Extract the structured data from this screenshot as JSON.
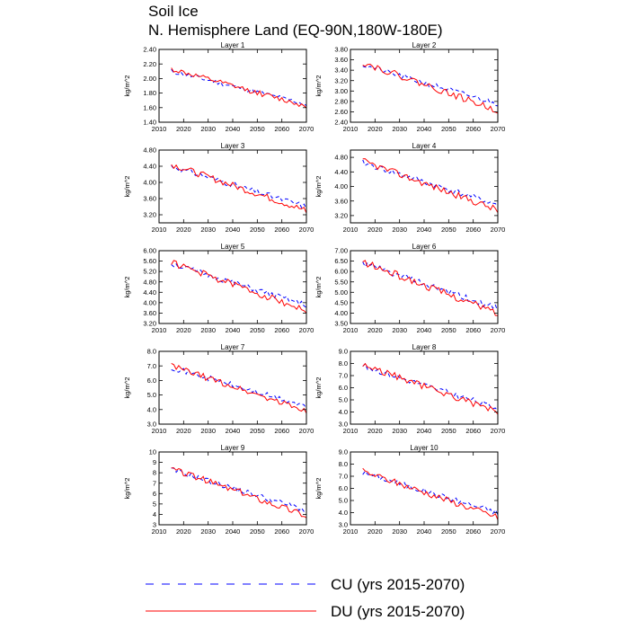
{
  "title_line1": "Soil Ice",
  "title_line2": "N. Hemisphere Land (EQ-90N,180W-180E)",
  "legend": [
    {
      "label": "CU (yrs 2015-2070)",
      "color": "#0000ff",
      "dash": true
    },
    {
      "label": "DU (yrs 2015-2070)",
      "color": "#ff0000",
      "dash": false
    }
  ],
  "chart_data": [
    {
      "type": "line",
      "title": "Layer 1",
      "ylabel": "kg/m^2",
      "xlim": [
        2010,
        2070
      ],
      "ylim": [
        1.4,
        2.4
      ],
      "yticks": [
        "1.40",
        "1.60",
        "1.80",
        "2.00",
        "2.20",
        "2.40"
      ],
      "xticks": [
        "2010",
        "2020",
        "2030",
        "2040",
        "2050",
        "2060",
        "2070"
      ],
      "series": [
        {
          "name": "CU",
          "start": 2.1,
          "end": 1.65,
          "seed": 11
        },
        {
          "name": "DU",
          "start": 2.13,
          "end": 1.62,
          "seed": 12
        }
      ]
    },
    {
      "type": "line",
      "title": "Layer 2",
      "ylabel": "kg/m^2",
      "xlim": [
        2010,
        2070
      ],
      "ylim": [
        2.4,
        3.8
      ],
      "yticks": [
        "2.40",
        "2.60",
        "2.80",
        "3.00",
        "3.20",
        "3.40",
        "3.60",
        "3.80"
      ],
      "xticks": [
        "2010",
        "2020",
        "2030",
        "2040",
        "2050",
        "2060",
        "2070"
      ],
      "series": [
        {
          "name": "CU",
          "start": 3.5,
          "end": 2.75,
          "seed": 21
        },
        {
          "name": "DU",
          "start": 3.55,
          "end": 2.62,
          "seed": 22
        }
      ]
    },
    {
      "type": "line",
      "title": "Layer 3",
      "ylabel": "kg/m^2",
      "xlim": [
        2010,
        2070
      ],
      "ylim": [
        3.0,
        4.8
      ],
      "yticks": [
        "3.20",
        "3.60",
        "4.00",
        "4.40",
        "4.80"
      ],
      "xticks": [
        "2010",
        "2020",
        "2030",
        "2040",
        "2050",
        "2060",
        "2070"
      ],
      "series": [
        {
          "name": "CU",
          "start": 4.4,
          "end": 3.4,
          "seed": 31
        },
        {
          "name": "DU",
          "start": 4.45,
          "end": 3.3,
          "seed": 32
        }
      ]
    },
    {
      "type": "line",
      "title": "Layer 4",
      "ylabel": "kg/m^2",
      "xlim": [
        2010,
        2070
      ],
      "ylim": [
        3.0,
        5.0
      ],
      "yticks": [
        "3.20",
        "3.60",
        "4.00",
        "4.40",
        "4.80"
      ],
      "xticks": [
        "2010",
        "2020",
        "2030",
        "2040",
        "2050",
        "2060",
        "2070"
      ],
      "series": [
        {
          "name": "CU",
          "start": 4.65,
          "end": 3.5,
          "seed": 41
        },
        {
          "name": "DU",
          "start": 4.7,
          "end": 3.35,
          "seed": 42
        }
      ]
    },
    {
      "type": "line",
      "title": "Layer 5",
      "ylabel": "kg/m^2",
      "xlim": [
        2010,
        2070
      ],
      "ylim": [
        3.2,
        6.0
      ],
      "yticks": [
        "3.20",
        "3.60",
        "4.00",
        "4.40",
        "4.80",
        "5.20",
        "5.60",
        "6.00"
      ],
      "xticks": [
        "2010",
        "2020",
        "2030",
        "2040",
        "2050",
        "2060",
        "2070"
      ],
      "series": [
        {
          "name": "CU",
          "start": 5.5,
          "end": 3.9,
          "seed": 51
        },
        {
          "name": "DU",
          "start": 5.55,
          "end": 3.7,
          "seed": 52
        }
      ]
    },
    {
      "type": "line",
      "title": "Layer 6",
      "ylabel": "kg/m^2",
      "xlim": [
        2010,
        2070
      ],
      "ylim": [
        3.5,
        7.0
      ],
      "yticks": [
        "3.50",
        "4.00",
        "4.50",
        "5.00",
        "5.50",
        "6.00",
        "6.50",
        "7.00"
      ],
      "xticks": [
        "2010",
        "2020",
        "2030",
        "2040",
        "2050",
        "2060",
        "2070"
      ],
      "series": [
        {
          "name": "CU",
          "start": 6.4,
          "end": 4.2,
          "seed": 61
        },
        {
          "name": "DU",
          "start": 6.45,
          "end": 4.0,
          "seed": 62
        }
      ]
    },
    {
      "type": "line",
      "title": "Layer 7",
      "ylabel": "kg/m^2",
      "xlim": [
        2010,
        2070
      ],
      "ylim": [
        3.0,
        8.0
      ],
      "yticks": [
        "3.0",
        "4.0",
        "5.0",
        "6.0",
        "7.0",
        "8.0"
      ],
      "xticks": [
        "2010",
        "2020",
        "2030",
        "2040",
        "2050",
        "2060",
        "2070"
      ],
      "series": [
        {
          "name": "CU",
          "start": 6.9,
          "end": 4.2,
          "seed": 71
        },
        {
          "name": "DU",
          "start": 7.0,
          "end": 3.9,
          "seed": 72
        }
      ]
    },
    {
      "type": "line",
      "title": "Layer 8",
      "ylabel": "kg/m^2",
      "xlim": [
        2010,
        2070
      ],
      "ylim": [
        3.0,
        9.0
      ],
      "yticks": [
        "3.0",
        "4.0",
        "5.0",
        "6.0",
        "7.0",
        "8.0",
        "9.0"
      ],
      "xticks": [
        "2010",
        "2020",
        "2030",
        "2040",
        "2050",
        "2060",
        "2070"
      ],
      "series": [
        {
          "name": "CU",
          "start": 7.8,
          "end": 4.3,
          "seed": 81
        },
        {
          "name": "DU",
          "start": 7.9,
          "end": 4.0,
          "seed": 82
        }
      ]
    },
    {
      "type": "line",
      "title": "Layer 9",
      "ylabel": "kg/m^2",
      "xlim": [
        2010,
        2070
      ],
      "ylim": [
        3,
        10
      ],
      "yticks": [
        "3",
        "4",
        "5",
        "6",
        "7",
        "8",
        "9",
        "10"
      ],
      "xticks": [
        "2010",
        "2020",
        "2030",
        "2040",
        "2050",
        "2060",
        "2070"
      ],
      "series": [
        {
          "name": "CU",
          "start": 8.3,
          "end": 4.4,
          "seed": 91
        },
        {
          "name": "DU",
          "start": 8.4,
          "end": 3.9,
          "seed": 92
        }
      ]
    },
    {
      "type": "line",
      "title": "Layer 10",
      "ylabel": "kg/m^2",
      "xlim": [
        2010,
        2070
      ],
      "ylim": [
        3.0,
        9.0
      ],
      "yticks": [
        "3.0",
        "4.0",
        "5.0",
        "6.0",
        "7.0",
        "8.0",
        "9.0"
      ],
      "xticks": [
        "2010",
        "2020",
        "2030",
        "2040",
        "2050",
        "2060",
        "2070"
      ],
      "series": [
        {
          "name": "CU",
          "start": 7.3,
          "end": 4.0,
          "seed": 101
        },
        {
          "name": "DU",
          "start": 7.4,
          "end": 3.6,
          "seed": 102
        }
      ]
    }
  ]
}
